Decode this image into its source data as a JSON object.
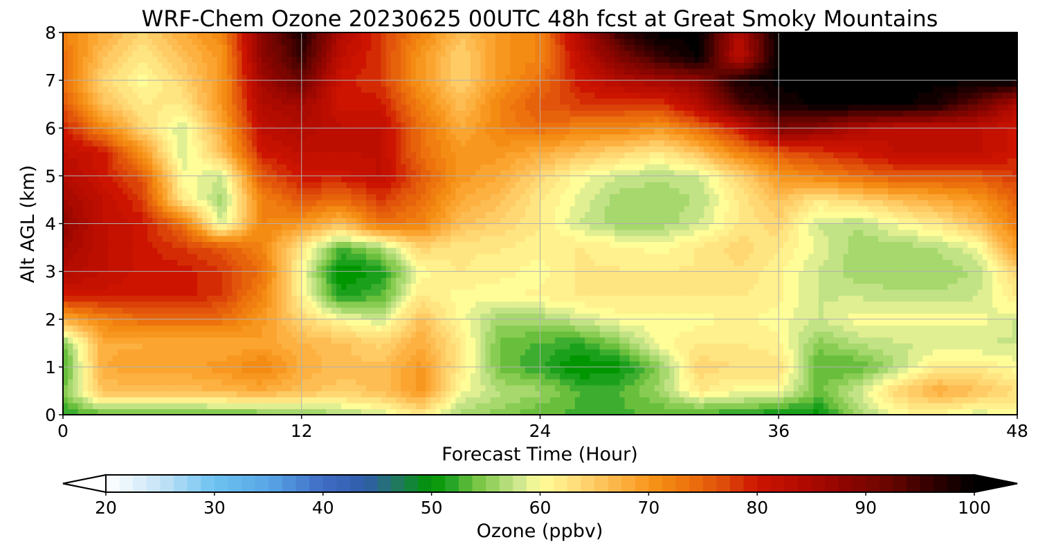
{
  "chart_data": {
    "type": "heatmap",
    "title": "WRF-Chem Ozone  20230625 00UTC 48h fcst at Great Smoky Mountains",
    "xlabel": "Forecast Time (Hour)",
    "ylabel": "Alt AGL (km)",
    "xlim": [
      0,
      48
    ],
    "ylim": [
      0,
      8
    ],
    "xticks": [
      0,
      12,
      24,
      36,
      48
    ],
    "yticks": [
      0,
      1,
      2,
      3,
      4,
      5,
      6,
      7,
      8
    ],
    "grid": true,
    "x": [
      0,
      2,
      4,
      6,
      8,
      10,
      12,
      14,
      16,
      18,
      20,
      22,
      24,
      26,
      28,
      30,
      32,
      34,
      36,
      38,
      40,
      42,
      44,
      46,
      48
    ],
    "y": [
      0,
      0.5,
      1,
      1.5,
      2,
      2.5,
      3,
      3.5,
      4,
      4.5,
      5,
      5.5,
      6,
      6.5,
      7,
      7.5,
      8
    ],
    "values": [
      [
        52,
        53,
        53,
        53,
        53,
        54,
        55,
        56,
        58,
        62,
        56,
        55,
        53,
        53,
        53,
        53,
        52,
        52,
        50,
        50,
        56,
        60,
        60,
        58,
        60
      ],
      [
        54,
        66,
        66,
        66,
        67,
        68,
        66,
        65,
        66,
        70,
        60,
        57,
        56,
        53,
        53,
        56,
        62,
        60,
        60,
        54,
        58,
        64,
        68,
        66,
        63
      ],
      [
        52,
        68,
        69,
        69,
        70,
        72,
        68,
        66,
        66,
        70,
        62,
        54,
        52,
        49,
        50,
        55,
        64,
        63,
        63,
        53,
        53,
        57,
        62,
        62,
        60
      ],
      [
        54,
        68,
        68,
        68,
        68,
        69,
        67,
        66,
        64,
        68,
        62,
        54,
        53,
        52,
        55,
        60,
        62,
        62,
        61,
        55,
        57,
        58,
        58,
        58,
        58
      ],
      [
        68,
        72,
        74,
        74,
        74,
        70,
        64,
        60,
        58,
        66,
        60,
        56,
        56,
        58,
        60,
        60,
        60,
        61,
        60,
        58,
        60,
        60,
        60,
        60,
        58
      ],
      [
        80,
        80,
        80,
        80,
        78,
        72,
        61,
        51,
        53,
        62,
        60,
        60,
        61,
        62,
        62,
        62,
        62,
        62,
        61,
        58,
        58,
        57,
        57,
        58,
        62
      ],
      [
        84,
        82,
        80,
        80,
        78,
        74,
        60,
        49,
        51,
        60,
        62,
        61,
        60,
        62,
        62,
        62,
        62,
        63,
        61,
        58,
        56,
        56,
        56,
        57,
        64
      ],
      [
        86,
        82,
        80,
        78,
        76,
        72,
        62,
        53,
        56,
        64,
        62,
        62,
        61,
        62,
        61,
        60,
        62,
        64,
        62,
        59,
        56,
        56,
        57,
        59,
        70
      ],
      [
        88,
        82,
        80,
        74,
        58,
        72,
        70,
        66,
        74,
        72,
        66,
        64,
        62,
        58,
        56,
        56,
        58,
        62,
        64,
        58,
        57,
        60,
        62,
        66,
        73
      ],
      [
        86,
        82,
        78,
        62,
        56,
        72,
        76,
        74,
        78,
        74,
        68,
        66,
        62,
        59,
        56,
        56,
        57,
        62,
        66,
        62,
        64,
        66,
        68,
        70,
        75
      ],
      [
        84,
        80,
        76,
        60,
        58,
        76,
        80,
        80,
        82,
        76,
        70,
        68,
        64,
        60,
        58,
        57,
        58,
        64,
        70,
        72,
        74,
        76,
        76,
        76,
        78
      ],
      [
        82,
        80,
        70,
        58,
        66,
        80,
        82,
        82,
        82,
        74,
        70,
        70,
        68,
        66,
        64,
        62,
        66,
        72,
        76,
        78,
        80,
        82,
        82,
        82,
        80
      ],
      [
        80,
        72,
        64,
        58,
        68,
        82,
        84,
        82,
        82,
        74,
        68,
        72,
        74,
        72,
        72,
        70,
        74,
        80,
        90,
        88,
        84,
        82,
        82,
        82,
        80
      ],
      [
        76,
        66,
        62,
        62,
        70,
        84,
        86,
        80,
        80,
        72,
        66,
        72,
        76,
        78,
        78,
        78,
        84,
        94,
        98,
        100,
        100,
        100,
        98,
        92,
        84
      ],
      [
        74,
        64,
        60,
        64,
        70,
        86,
        92,
        80,
        78,
        70,
        64,
        70,
        74,
        80,
        84,
        86,
        88,
        98,
        100,
        100,
        100,
        100,
        100,
        100,
        100
      ],
      [
        74,
        66,
        62,
        66,
        70,
        88,
        96,
        82,
        78,
        70,
        64,
        70,
        72,
        82,
        90,
        96,
        100,
        82,
        100,
        100,
        100,
        100,
        100,
        100,
        100
      ],
      [
        72,
        68,
        64,
        68,
        72,
        88,
        98,
        84,
        78,
        72,
        66,
        70,
        72,
        84,
        96,
        100,
        100,
        84,
        100,
        100,
        100,
        100,
        100,
        100,
        100
      ]
    ],
    "colorbar": {
      "label": "Ozone  (ppbv)",
      "min": 20,
      "max": 100,
      "ticks": [
        20,
        30,
        40,
        50,
        60,
        70,
        80,
        90,
        100
      ],
      "extend": "both",
      "orientation": "horizontal"
    },
    "colormap": [
      [
        20,
        "#ffffff"
      ],
      [
        25,
        "#c6e4f7"
      ],
      [
        30,
        "#6cc2f0"
      ],
      [
        35,
        "#58a6e6"
      ],
      [
        40,
        "#3f6cc5"
      ],
      [
        44,
        "#2f5da8"
      ],
      [
        47,
        "#1f7a5a"
      ],
      [
        50,
        "#009600"
      ],
      [
        52,
        "#2aa62a"
      ],
      [
        54,
        "#72c23e"
      ],
      [
        56,
        "#a0d668"
      ],
      [
        58,
        "#cde78e"
      ],
      [
        60,
        "#fffd98"
      ],
      [
        63,
        "#ffe07e"
      ],
      [
        66,
        "#fdc057"
      ],
      [
        69,
        "#fba12b"
      ],
      [
        71,
        "#f58d13"
      ],
      [
        74,
        "#ec6f0c"
      ],
      [
        77,
        "#de4b0a"
      ],
      [
        80,
        "#cc1400"
      ],
      [
        84,
        "#b30b00"
      ],
      [
        88,
        "#8f0500"
      ],
      [
        92,
        "#6a0500"
      ],
      [
        96,
        "#330000"
      ],
      [
        100,
        "#000000"
      ]
    ]
  }
}
